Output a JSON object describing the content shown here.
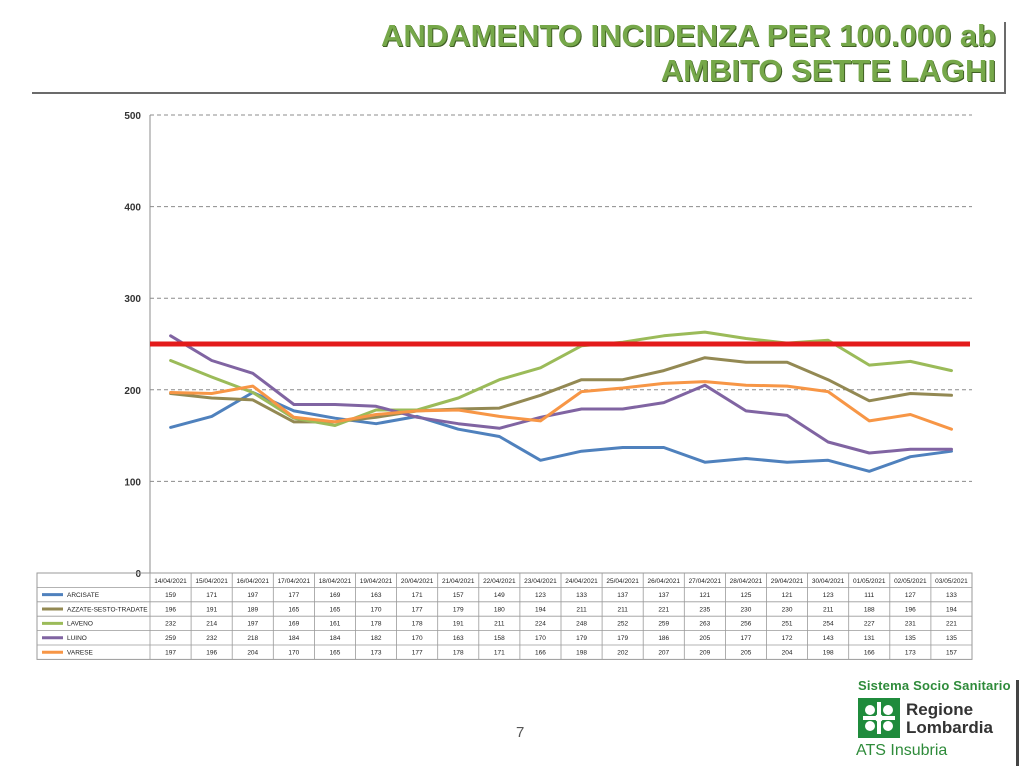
{
  "header": {
    "title_line1": "ANDAMENTO INCIDENZA PER 100.000 ab",
    "title_line2": "AMBITO SETTE LAGHI"
  },
  "page_number": "7",
  "logo": {
    "top_text": "Sistema Socio Sanitario",
    "name_line1": "Regione",
    "name_line2": "Lombardia",
    "sub_text": "ATS Insubria"
  },
  "chart_data": {
    "type": "line",
    "title": "",
    "xlabel": "",
    "ylabel": "",
    "ylim": [
      0,
      500
    ],
    "yticks": [
      0,
      100,
      200,
      300,
      400,
      500
    ],
    "grid": "horizontal dashed",
    "threshold": {
      "value": 250,
      "color": "#e31b1b"
    },
    "categories": [
      "14/04/2021",
      "15/04/2021",
      "16/04/2021",
      "17/04/2021",
      "18/04/2021",
      "19/04/2021",
      "20/04/2021",
      "21/04/2021",
      "22/04/2021",
      "23/04/2021",
      "24/04/2021",
      "25/04/2021",
      "26/04/2021",
      "27/04/2021",
      "28/04/2021",
      "29/04/2021",
      "30/04/2021",
      "01/05/2021",
      "02/05/2021",
      "03/05/2021"
    ],
    "series": [
      {
        "name": "ARCISATE",
        "color": "#4f81bd",
        "values": [
          159,
          171,
          197,
          177,
          169,
          163,
          171,
          157,
          149,
          123,
          133,
          137,
          137,
          121,
          125,
          121,
          123,
          111,
          127,
          133
        ]
      },
      {
        "name": "AZZATE-SESTO-TRADATE",
        "color": "#938953",
        "values": [
          196,
          191,
          189,
          165,
          165,
          170,
          177,
          179,
          180,
          194,
          211,
          211,
          221,
          235,
          230,
          230,
          211,
          188,
          196,
          194
        ]
      },
      {
        "name": "LAVENO",
        "color": "#9bbb59",
        "values": [
          232,
          214,
          197,
          169,
          161,
          178,
          178,
          191,
          211,
          224,
          248,
          252,
          259,
          263,
          256,
          251,
          254,
          227,
          231,
          221
        ]
      },
      {
        "name": "LUINO",
        "color": "#8064a2",
        "values": [
          259,
          232,
          218,
          184,
          184,
          182,
          170,
          163,
          158,
          170,
          179,
          179,
          186,
          205,
          177,
          172,
          143,
          131,
          135,
          135
        ]
      },
      {
        "name": "VARESE",
        "color": "#f79646",
        "values": [
          197,
          196,
          204,
          170,
          165,
          173,
          177,
          178,
          171,
          166,
          198,
          202,
          207,
          209,
          205,
          204,
          198,
          166,
          173,
          157
        ]
      }
    ]
  }
}
